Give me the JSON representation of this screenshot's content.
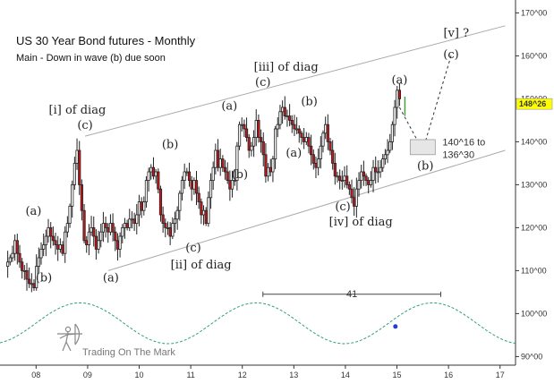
{
  "title": "US 30 Year Bond futures - Monthly",
  "subtitle": "Main - Down in wave (b) due soon",
  "watermark": "Trading On The Mark",
  "colors": {
    "up_candle": "#ffffff",
    "down_candle": "#c8161d",
    "wick": "#222222",
    "channel": "#aaaaaa",
    "cycle": "#2e9e86",
    "price_box": "#ffff00",
    "dot": "#1f3fd8"
  },
  "chart_data": {
    "type": "candlestick",
    "x_ticks": [
      "08",
      "09",
      "10",
      "11",
      "12",
      "13",
      "14",
      "15",
      "16",
      "17"
    ],
    "y_ticks": [
      "90^00",
      "100^00",
      "110^00",
      "120^00",
      "130^00",
      "140^00",
      "150^00",
      "160^00",
      "170^00"
    ],
    "y_tick_values": [
      90,
      100,
      110,
      120,
      130,
      140,
      150,
      160,
      170
    ],
    "ylim": [
      88,
      173
    ],
    "xlim": [
      2007.3,
      2017.3
    ],
    "current_price": "148^26",
    "current_price_value": 148.8,
    "closes": [
      112,
      113,
      114,
      117,
      114,
      112,
      110,
      110,
      108,
      107,
      107,
      106,
      111,
      113,
      115,
      116,
      118,
      120,
      118,
      117,
      116,
      115,
      116,
      114,
      119,
      121,
      125,
      130,
      135,
      138,
      130,
      124,
      117,
      116,
      119,
      120,
      118,
      115,
      117,
      119,
      121,
      120,
      119,
      121,
      119,
      117,
      115,
      118,
      120,
      121,
      120,
      122,
      122,
      121,
      123,
      126,
      124,
      126,
      131,
      133,
      134,
      132,
      133,
      129,
      123,
      121,
      120,
      120,
      118,
      121,
      122,
      124,
      128,
      131,
      133,
      133,
      131,
      129,
      131,
      128,
      126,
      123,
      124,
      121,
      127,
      131,
      134,
      138,
      134,
      136,
      134,
      133,
      131,
      129,
      131,
      131,
      139,
      144,
      144,
      143,
      141,
      138,
      139,
      141,
      145,
      141,
      140,
      137,
      132,
      134,
      133,
      136,
      143,
      144,
      147,
      148,
      146,
      146,
      145,
      144,
      143,
      143,
      142,
      141,
      140,
      141,
      139,
      137,
      135,
      134,
      136,
      139,
      142,
      144,
      140,
      138,
      135,
      132,
      132,
      131,
      131,
      132,
      130,
      129,
      127,
      125,
      129,
      131,
      133,
      132,
      131,
      130,
      131,
      134,
      133,
      133,
      134,
      136,
      137,
      138,
      140,
      144,
      148,
      152,
      150
    ],
    "projection": {
      "points": [
        [
          2015.05,
          148
        ],
        [
          2015.5,
          138
        ],
        [
          2016.05,
          160
        ]
      ],
      "target_box": [
        137,
        140.5
      ],
      "target_note_line1": "140^16 to",
      "target_note_line2": "136^30"
    },
    "measure": {
      "from": 2012.4,
      "to": 2015.85,
      "y": 104.5,
      "label": "41"
    },
    "channel": {
      "upper": [
        [
          2008.95,
          141.3
        ],
        [
          2017.1,
          167
        ]
      ],
      "lower": [
        [
          2009.4,
          110
        ],
        [
          2017.1,
          138
        ]
      ]
    },
    "cycle": {
      "period": 3.42,
      "peak_at": 2008.85,
      "min": 93,
      "max": 102.5
    },
    "cycle_marker": [
      2014.97,
      97
    ],
    "wave_labels": [
      {
        "text": "(a)",
        "x": 2007.95,
        "y": 123
      },
      {
        "text": "(b)",
        "x": 2008.15,
        "y": 107.5
      },
      {
        "text": "[i] of diag",
        "x": 2008.8,
        "y": 146.5
      },
      {
        "text": "(c)",
        "x": 2008.95,
        "y": 143
      },
      {
        "text": "(a)",
        "x": 2009.45,
        "y": 107.5
      },
      {
        "text": "(b)",
        "x": 2010.6,
        "y": 138.5
      },
      {
        "text": "(c)",
        "x": 2011.05,
        "y": 114.5
      },
      {
        "text": "[ii] of diag",
        "x": 2011.2,
        "y": 110.5
      },
      {
        "text": "(a)",
        "x": 2011.75,
        "y": 147.5
      },
      {
        "text": "(b)",
        "x": 2011.95,
        "y": 131.5
      },
      {
        "text": "[iii] of diag",
        "x": 2012.85,
        "y": 156.5
      },
      {
        "text": "(c)",
        "x": 2012.4,
        "y": 153
      },
      {
        "text": "(b)",
        "x": 2013.3,
        "y": 148.5
      },
      {
        "text": "(a)",
        "x": 2013.0,
        "y": 136.5
      },
      {
        "text": "(c)",
        "x": 2013.95,
        "y": 124
      },
      {
        "text": "[iv] of diag",
        "x": 2014.3,
        "y": 120.5
      },
      {
        "text": "(a)",
        "x": 2015.05,
        "y": 153.5
      },
      {
        "text": "(b)",
        "x": 2015.55,
        "y": 133.5
      },
      {
        "text": "[v] ?",
        "x": 2016.15,
        "y": 164.5
      },
      {
        "text": "(c)",
        "x": 2016.05,
        "y": 159.5
      }
    ]
  }
}
